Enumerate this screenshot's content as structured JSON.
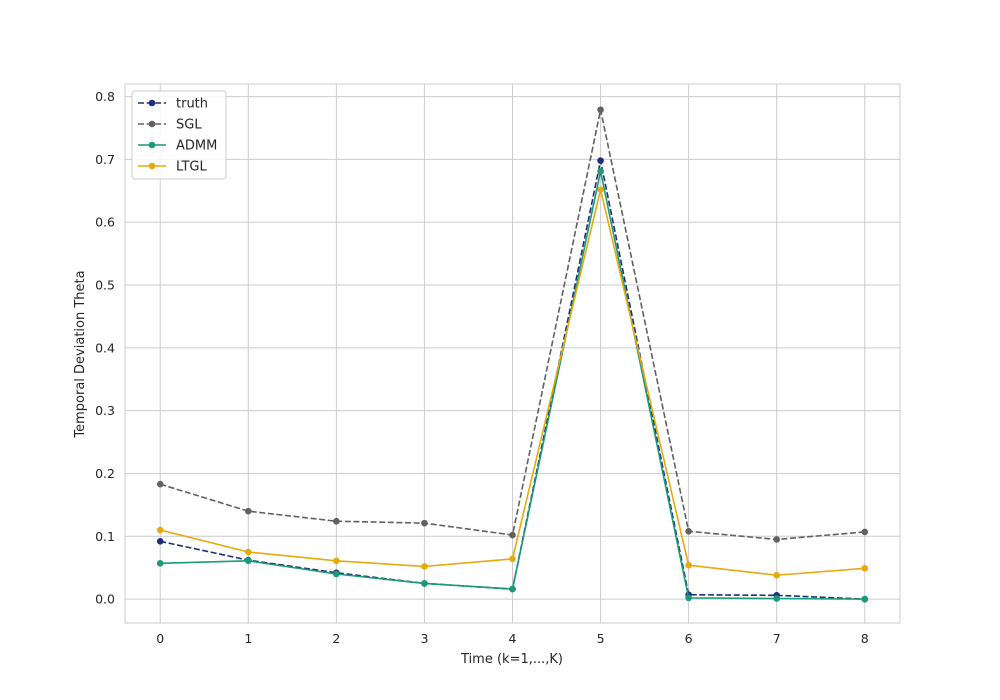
{
  "chart_data": {
    "type": "line",
    "title": "",
    "xlabel": "Time (k=1,...,K)",
    "ylabel": "Temporal Deviation Theta",
    "x": [
      0,
      1,
      2,
      3,
      4,
      5,
      6,
      7,
      8
    ],
    "xlim": [
      -0.4,
      8.4
    ],
    "ylim": [
      -0.038,
      0.82
    ],
    "xticks": [
      "0",
      "1",
      "2",
      "3",
      "4",
      "5",
      "6",
      "7",
      "8"
    ],
    "yticks": [
      "0.0",
      "0.1",
      "0.2",
      "0.3",
      "0.4",
      "0.5",
      "0.6",
      "0.7",
      "0.8"
    ],
    "grid": true,
    "legend_position": "top-left",
    "series": [
      {
        "name": "truth",
        "color": "#1f2f7a",
        "dashed": true,
        "values": [
          0.092,
          0.062,
          0.042,
          0.025,
          0.016,
          0.698,
          0.007,
          0.006,
          0.0
        ]
      },
      {
        "name": "SGL",
        "color": "#616161",
        "dashed": true,
        "values": [
          0.183,
          0.14,
          0.124,
          0.121,
          0.102,
          0.779,
          0.108,
          0.095,
          0.107
        ]
      },
      {
        "name": "ADMM",
        "color": "#1a9a78",
        "dashed": false,
        "values": [
          0.057,
          0.061,
          0.04,
          0.025,
          0.016,
          0.681,
          0.002,
          0.001,
          0.0
        ]
      },
      {
        "name": "LTGL",
        "color": "#e5aa0f",
        "dashed": false,
        "values": [
          0.11,
          0.075,
          0.061,
          0.052,
          0.064,
          0.652,
          0.054,
          0.038,
          0.049
        ]
      }
    ]
  }
}
